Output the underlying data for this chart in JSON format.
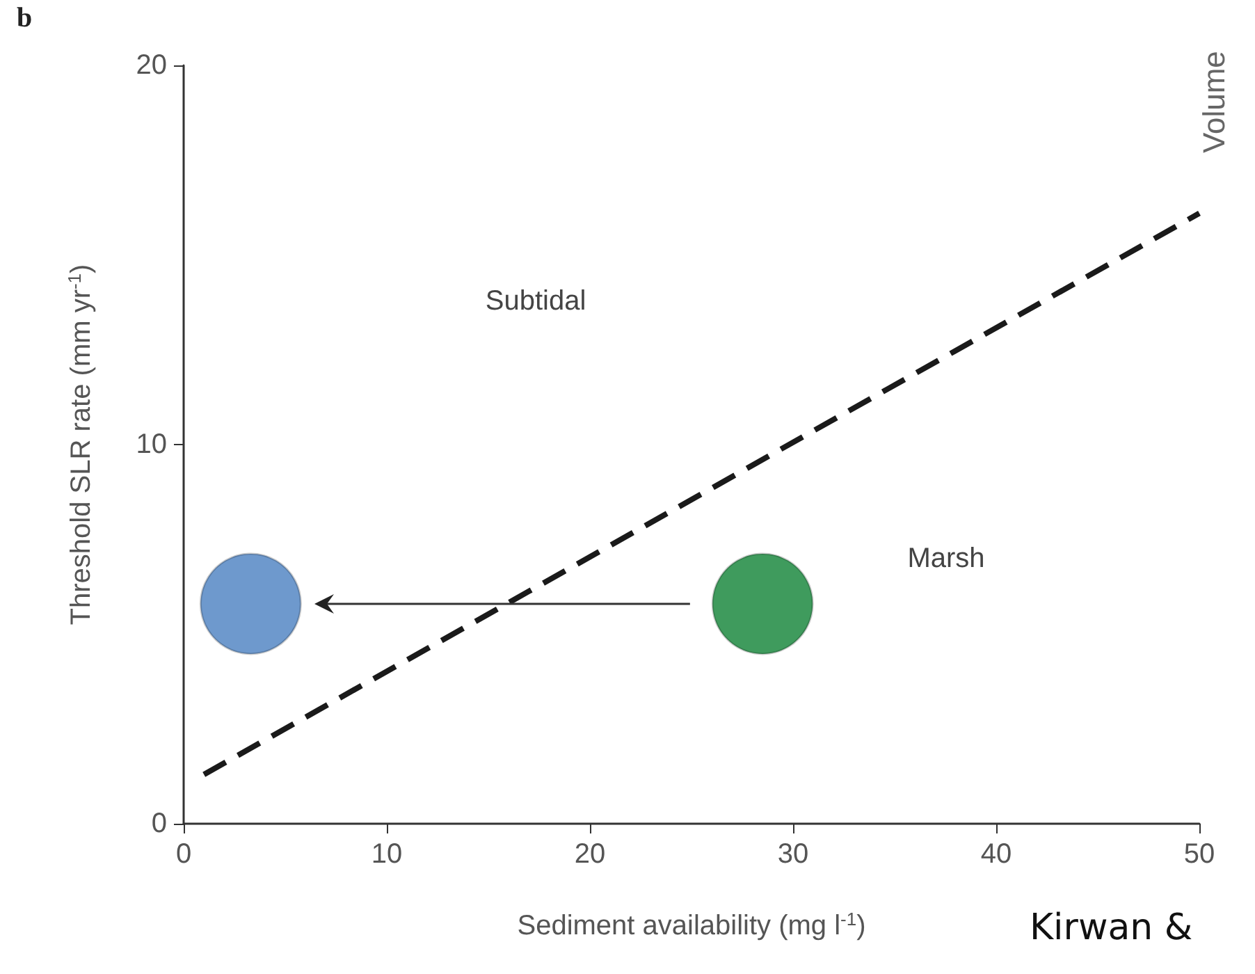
{
  "chart_data": {
    "type": "scatter",
    "xlabel": "Sediment availability (mg l$^{-1}$)",
    "ylabel": "Threshold SLR rate (mm yr$^{-1}$)",
    "xlim": [
      0,
      50
    ],
    "xticks": [
      0,
      10,
      20,
      30,
      40,
      50
    ],
    "ylim": [
      0,
      20
    ],
    "yticks": [
      0,
      10,
      20
    ],
    "grid": false,
    "series": [
      {
        "type": "line",
        "color": "#1a1a1a",
        "line_style": "dashed",
        "marker": "none",
        "x": [
          1,
          50
        ],
        "values": [
          1.3,
          16.1
        ]
      },
      {
        "marker": "circle",
        "x": [
          3.3,
          28.5
        ],
        "values": [
          5.8,
          5.8
        ],
        "colors": [
          "#4a7fc1",
          "#0f8234"
        ]
      }
    ],
    "annotations": [
      "b",
      "Subtidal",
      "Marsh",
      "Volume",
      "Kirwan &"
    ]
  }
}
